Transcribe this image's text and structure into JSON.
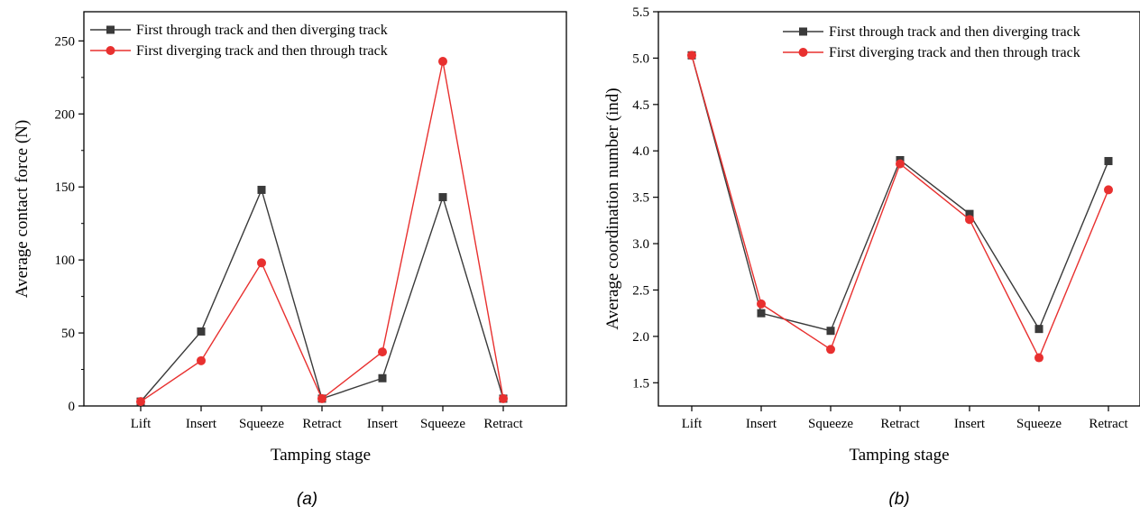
{
  "chart_data": [
    {
      "type": "line",
      "panel_label": "(a)",
      "xlabel": "Tamping stage",
      "ylabel": "Average contact force (N)",
      "categories": [
        "Lift",
        "Insert",
        "Squeeze",
        "Retract",
        "Insert",
        "Squeeze",
        "Retract"
      ],
      "ylim": [
        0,
        270
      ],
      "yticks": [
        0,
        50,
        100,
        150,
        200,
        250
      ],
      "legend_position": "top-left",
      "grid": false,
      "series": [
        {
          "name": "First through track and then diverging track",
          "color": "#3a3a3a",
          "marker": "square",
          "values": [
            3,
            51,
            148,
            5,
            19,
            143,
            5
          ]
        },
        {
          "name": "First diverging track and then through track",
          "color": "#e8302f",
          "marker": "circle",
          "values": [
            3,
            31,
            98,
            5,
            37,
            236,
            5
          ]
        }
      ]
    },
    {
      "type": "line",
      "panel_label": "(b)",
      "xlabel": "Tamping stage",
      "ylabel": "Average coordination number (ind)",
      "categories": [
        "Lift",
        "Insert",
        "Squeeze",
        "Retract",
        "Insert",
        "Squeeze",
        "Retract"
      ],
      "ylim": [
        1.25,
        5.5
      ],
      "yticks": [
        1.5,
        2.0,
        2.5,
        3.0,
        3.5,
        4.0,
        4.5,
        5.0,
        5.5
      ],
      "legend_position": "top-right",
      "grid": false,
      "series": [
        {
          "name": "First through track and then diverging track",
          "color": "#3a3a3a",
          "marker": "square",
          "values": [
            5.03,
            2.25,
            2.06,
            3.9,
            3.32,
            2.08,
            3.89
          ]
        },
        {
          "name": "First diverging track and then through track",
          "color": "#e8302f",
          "marker": "circle",
          "values": [
            5.03,
            2.35,
            1.86,
            3.86,
            3.26,
            1.77,
            3.58
          ]
        }
      ]
    }
  ]
}
